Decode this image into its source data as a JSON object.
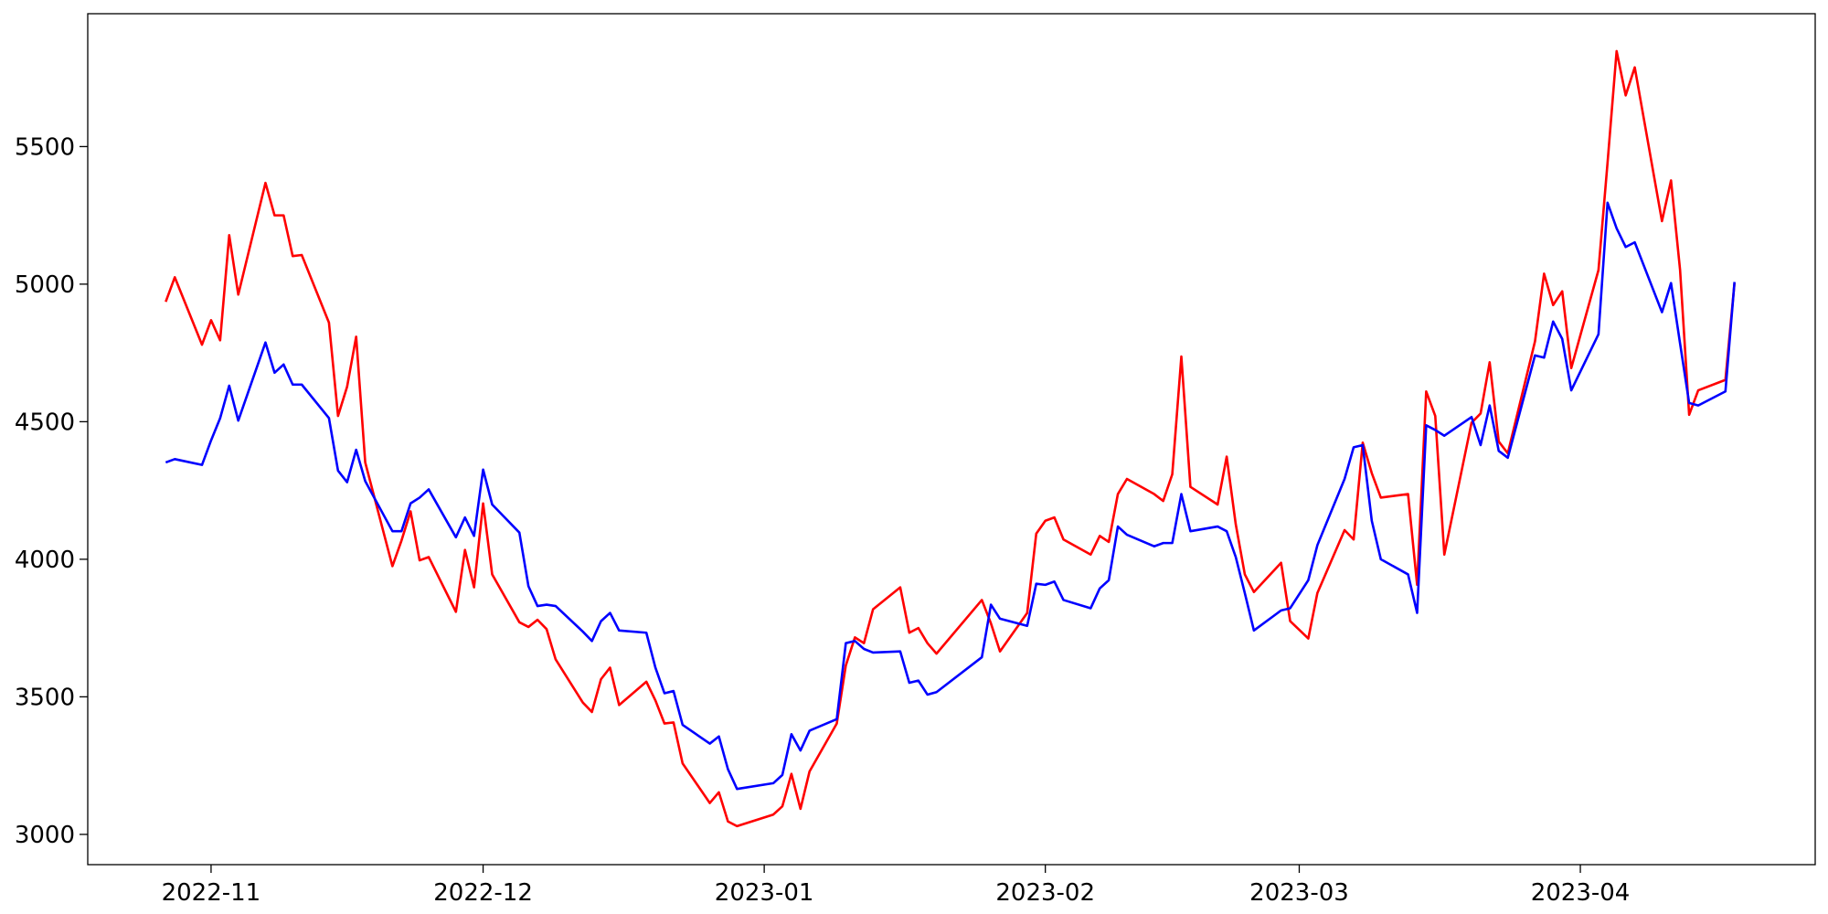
{
  "chart_data": {
    "type": "line",
    "x": [
      19292,
      19293,
      19296,
      19297,
      19298,
      19299,
      19300,
      19303,
      19304,
      19305,
      19306,
      19307,
      19310,
      19311,
      19312,
      19313,
      19314,
      19317,
      19318,
      19319,
      19320,
      19321,
      19324,
      19325,
      19326,
      19327,
      19328,
      19331,
      19332,
      19333,
      19334,
      19335,
      19338,
      19339,
      19340,
      19341,
      19342,
      19345,
      19346,
      19347,
      19348,
      19349,
      19352,
      19353,
      19354,
      19355,
      19359,
      19360,
      19361,
      19362,
      19363,
      19366,
      19367,
      19368,
      19369,
      19370,
      19373,
      19374,
      19375,
      19376,
      19377,
      19382,
      19383,
      19384,
      19387,
      19388,
      19389,
      19390,
      19391,
      19394,
      19395,
      19396,
      19397,
      19398,
      19401,
      19402,
      19403,
      19404,
      19405,
      19408,
      19409,
      19410,
      19411,
      19412,
      19415,
      19416,
      19418,
      19419,
      19422,
      19423,
      19424,
      19425,
      19426,
      19429,
      19430,
      19431,
      19432,
      19433,
      19436,
      19437,
      19438,
      19439,
      19440,
      19443,
      19444,
      19445,
      19446,
      19447,
      19450,
      19451,
      19452,
      19453,
      19454,
      19457,
      19458,
      19459,
      19460,
      19461,
      19464,
      19465
    ],
    "series": [
      {
        "color": "#ff0000",
        "values": [
          4936,
          5025,
          4780,
          4869,
          4796,
          5178,
          4962,
          5368,
          5250,
          5250,
          5102,
          5106,
          4860,
          4521,
          4627,
          4809,
          4352,
          3975,
          4068,
          4174,
          3996,
          4008,
          3809,
          4034,
          3898,
          4203,
          3945,
          3771,
          3754,
          3780,
          3746,
          3636,
          3479,
          3445,
          3564,
          3606,
          3470,
          3555,
          3487,
          3403,
          3407,
          3258,
          3114,
          3153,
          3047,
          3030,
          3072,
          3102,
          3220,
          3093,
          3229,
          3403,
          3614,
          3716,
          3695,
          3818,
          3898,
          3733,
          3750,
          3695,
          3657,
          3852,
          3767,
          3665,
          3805,
          4093,
          4140,
          4152,
          4072,
          4017,
          4085,
          4063,
          4237,
          4292,
          4237,
          4212,
          4309,
          4737,
          4263,
          4199,
          4373,
          4127,
          3945,
          3881,
          3987,
          3775,
          3712,
          3877,
          4106,
          4072,
          4424,
          4313,
          4224,
          4237,
          3907,
          4610,
          4521,
          4017,
          4496,
          4530,
          4716,
          4428,
          4385,
          4792,
          5038,
          4924,
          4974,
          4695,
          5051,
          5441,
          5847,
          5686,
          5788,
          5229,
          5377,
          5051,
          4525,
          4614,
          4652,
          5004
        ]
      },
      {
        "color": "#0000ff",
        "values": [
          4352,
          4364,
          4343,
          4432,
          4513,
          4631,
          4504,
          4788,
          4678,
          4708,
          4635,
          4635,
          4513,
          4322,
          4280,
          4398,
          4284,
          4102,
          4102,
          4203,
          4224,
          4254,
          4080,
          4152,
          4085,
          4326,
          4199,
          4097,
          3902,
          3830,
          3835,
          3830,
          3737,
          3703,
          3775,
          3805,
          3741,
          3733,
          3606,
          3513,
          3521,
          3398,
          3330,
          3356,
          3237,
          3165,
          3186,
          3216,
          3364,
          3305,
          3377,
          3419,
          3695,
          3703,
          3674,
          3661,
          3665,
          3551,
          3559,
          3508,
          3517,
          3644,
          3835,
          3784,
          3758,
          3911,
          3907,
          3919,
          3852,
          3822,
          3894,
          3924,
          4119,
          4089,
          4047,
          4059,
          4059,
          4237,
          4102,
          4119,
          4102,
          4008,
          3877,
          3741,
          3814,
          3822,
          3924,
          4051,
          4292,
          4407,
          4415,
          4140,
          4000,
          3945,
          3805,
          4487,
          4470,
          4449,
          4517,
          4415,
          4559,
          4394,
          4369,
          4741,
          4733,
          4864,
          4801,
          4614,
          4818,
          5296,
          5203,
          5135,
          5152,
          4898,
          5004,
          4784,
          4568,
          4559,
          4610,
          5008
        ]
      }
    ],
    "xlim": [
      19283.4,
      19473.9
    ],
    "xticks": [
      {
        "value": 19297,
        "label": "2022-11"
      },
      {
        "value": 19327,
        "label": "2022-12"
      },
      {
        "value": 19358,
        "label": "2023-01"
      },
      {
        "value": 19389,
        "label": "2023-02"
      },
      {
        "value": 19417,
        "label": "2023-03"
      },
      {
        "value": 19448,
        "label": "2023-04"
      }
    ],
    "ylim": [
      2890,
      5983
    ],
    "yticks": [
      3000,
      3500,
      4000,
      4500,
      5000,
      5500
    ],
    "grid": false
  }
}
